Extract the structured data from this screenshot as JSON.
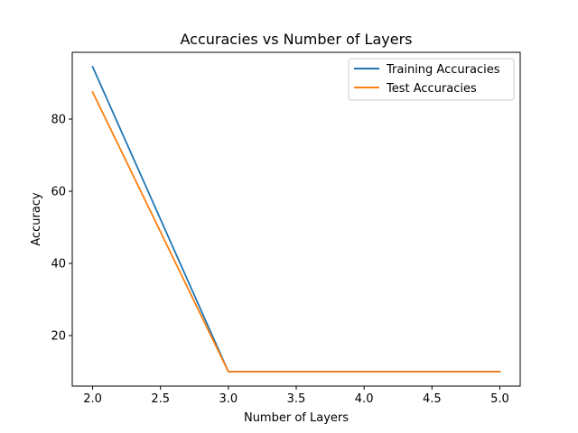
{
  "chart_data": {
    "type": "line",
    "title": "Accuracies vs Number of Layers",
    "xlabel": "Number of Layers",
    "ylabel": "Accuracy",
    "xlim": [
      1.85,
      5.15
    ],
    "ylim": [
      6.0,
      98.5
    ],
    "xticks": [
      "2.0",
      "2.5",
      "3.0",
      "3.5",
      "4.0",
      "4.5",
      "5.0"
    ],
    "yticks": [
      "20",
      "40",
      "60",
      "80"
    ],
    "x": [
      2,
      3,
      4,
      5
    ],
    "grid": false,
    "legend_position": "top-right",
    "series": [
      {
        "name": "Training Accuracies",
        "values": [
          94.5,
          10,
          10,
          10
        ],
        "color": "#1f77b4"
      },
      {
        "name": "Test Accuracies",
        "values": [
          87.5,
          10,
          10,
          10
        ],
        "color": "#ff7f0e"
      }
    ]
  }
}
